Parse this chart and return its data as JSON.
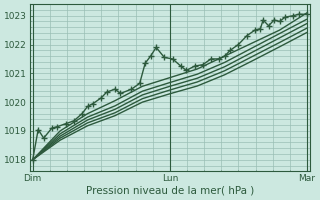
{
  "title": "",
  "xlabel": "Pression niveau de la mer( hPa )",
  "ylabel": "",
  "bg_color": "#cce8e0",
  "grid_color": "#9abfb5",
  "line_color": "#2d5a3d",
  "marker_color": "#2d5a3d",
  "text_color": "#2d5a3d",
  "axis_label_color": "#2d5a3d",
  "ylim": [
    1017.6,
    1023.4
  ],
  "yticks": [
    1018,
    1019,
    1020,
    1021,
    1022,
    1023
  ],
  "xtick_labels": [
    "Dim",
    "Lun",
    "Mar"
  ],
  "xtick_positions": [
    0.0,
    0.5,
    1.0
  ],
  "vline_positions": [
    0.0,
    0.5,
    1.0
  ],
  "series": [
    [
      0.0,
      1018.0,
      0.02,
      1019.05,
      0.04,
      1018.75,
      0.07,
      1019.1,
      0.09,
      1019.15,
      0.12,
      1019.25,
      0.15,
      1019.35,
      0.18,
      1019.6,
      0.2,
      1019.85,
      0.22,
      1019.95,
      0.25,
      1020.15,
      0.27,
      1020.35,
      0.3,
      1020.45,
      0.32,
      1020.3,
      0.36,
      1020.45,
      0.39,
      1020.65,
      0.41,
      1021.35,
      0.43,
      1021.6,
      0.45,
      1021.9,
      0.48,
      1021.55,
      0.51,
      1021.5,
      0.54,
      1021.25,
      0.56,
      1021.1,
      0.59,
      1021.25,
      0.62,
      1021.3,
      0.65,
      1021.5,
      0.68,
      1021.5,
      0.7,
      1021.6,
      0.72,
      1021.8,
      0.75,
      1022.0,
      0.78,
      1022.3,
      0.81,
      1022.5,
      0.83,
      1022.55,
      0.84,
      1022.85,
      0.86,
      1022.65,
      0.88,
      1022.85,
      0.9,
      1022.8,
      0.92,
      1022.95,
      0.95,
      1023.0,
      0.97,
      1023.05,
      1.0,
      1023.05
    ],
    [
      0.0,
      1018.0,
      0.1,
      1019.0,
      0.2,
      1019.6,
      0.3,
      1020.05,
      0.4,
      1020.55,
      0.5,
      1020.85,
      0.6,
      1021.15,
      0.7,
      1021.6,
      0.8,
      1022.05,
      0.9,
      1022.5,
      1.0,
      1023.1
    ],
    [
      0.0,
      1018.0,
      0.1,
      1018.9,
      0.2,
      1019.48,
      0.3,
      1019.87,
      0.4,
      1020.38,
      0.5,
      1020.68,
      0.6,
      1020.97,
      0.7,
      1021.38,
      0.8,
      1021.88,
      0.9,
      1022.38,
      1.0,
      1022.88
    ],
    [
      0.0,
      1018.0,
      0.1,
      1018.82,
      0.2,
      1019.38,
      0.3,
      1019.75,
      0.4,
      1020.25,
      0.5,
      1020.55,
      0.6,
      1020.83,
      0.7,
      1021.23,
      0.8,
      1021.73,
      0.9,
      1022.23,
      1.0,
      1022.73
    ],
    [
      0.0,
      1018.0,
      0.1,
      1018.75,
      0.2,
      1019.28,
      0.3,
      1019.63,
      0.4,
      1020.12,
      0.5,
      1020.42,
      0.6,
      1020.7,
      0.7,
      1021.09,
      0.8,
      1021.58,
      0.9,
      1022.07,
      1.0,
      1022.57
    ],
    [
      0.0,
      1018.0,
      0.1,
      1018.68,
      0.2,
      1019.18,
      0.3,
      1019.53,
      0.4,
      1020.0,
      0.5,
      1020.29,
      0.6,
      1020.56,
      0.7,
      1020.95,
      0.8,
      1021.43,
      0.9,
      1021.92,
      1.0,
      1022.42
    ]
  ],
  "has_markers": [
    true,
    false,
    false,
    false,
    false,
    false
  ],
  "xlabel_fontsize": 7.5,
  "tick_fontsize": 6.5
}
